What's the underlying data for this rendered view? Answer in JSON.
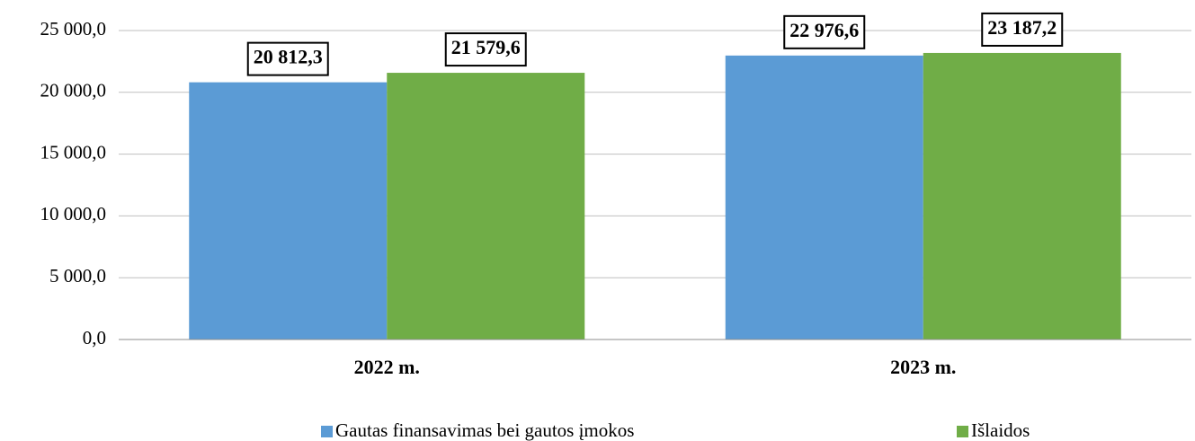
{
  "chart_data": {
    "type": "bar",
    "categories": [
      "2022 m.",
      "2023 m."
    ],
    "series": [
      {
        "name": "Gautas finansavimas bei gautos įmokos",
        "color": "#5b9bd5",
        "values": [
          20812.3,
          22976.6
        ],
        "value_labels": [
          "20 812,3",
          "22 976,6"
        ]
      },
      {
        "name": "Išlaidos",
        "color": "#70ad47",
        "values": [
          21579.6,
          23187.2
        ],
        "value_labels": [
          "21 579,6",
          "23 187,2"
        ]
      }
    ],
    "ylim": [
      0,
      25000
    ],
    "yticks": [
      {
        "value": 0,
        "label": "0,0"
      },
      {
        "value": 5000,
        "label": "5 000,0"
      },
      {
        "value": 10000,
        "label": "10 000,0"
      },
      {
        "value": 15000,
        "label": "15 000,0"
      },
      {
        "value": 20000,
        "label": "20 000,0"
      },
      {
        "value": 25000,
        "label": "25 000,0"
      }
    ],
    "grid": true,
    "legend": "bottom"
  }
}
